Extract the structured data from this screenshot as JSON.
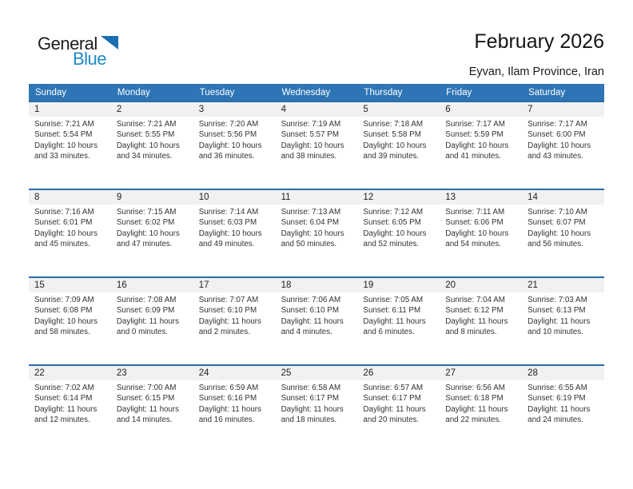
{
  "logo": {
    "general": "General",
    "blue": "Blue"
  },
  "header": {
    "title": "February 2026",
    "subtitle": "Eyvan, Ilam Province, Iran"
  },
  "calendar": {
    "day_headers": [
      "Sunday",
      "Monday",
      "Tuesday",
      "Wednesday",
      "Thursday",
      "Friday",
      "Saturday"
    ],
    "weeks": [
      {
        "days": [
          {
            "date": "1",
            "sunrise": "Sunrise: 7:21 AM",
            "sunset": "Sunset: 5:54 PM",
            "daylight": "Daylight: 10 hours and 33 minutes."
          },
          {
            "date": "2",
            "sunrise": "Sunrise: 7:21 AM",
            "sunset": "Sunset: 5:55 PM",
            "daylight": "Daylight: 10 hours and 34 minutes."
          },
          {
            "date": "3",
            "sunrise": "Sunrise: 7:20 AM",
            "sunset": "Sunset: 5:56 PM",
            "daylight": "Daylight: 10 hours and 36 minutes."
          },
          {
            "date": "4",
            "sunrise": "Sunrise: 7:19 AM",
            "sunset": "Sunset: 5:57 PM",
            "daylight": "Daylight: 10 hours and 38 minutes."
          },
          {
            "date": "5",
            "sunrise": "Sunrise: 7:18 AM",
            "sunset": "Sunset: 5:58 PM",
            "daylight": "Daylight: 10 hours and 39 minutes."
          },
          {
            "date": "6",
            "sunrise": "Sunrise: 7:17 AM",
            "sunset": "Sunset: 5:59 PM",
            "daylight": "Daylight: 10 hours and 41 minutes."
          },
          {
            "date": "7",
            "sunrise": "Sunrise: 7:17 AM",
            "sunset": "Sunset: 6:00 PM",
            "daylight": "Daylight: 10 hours and 43 minutes."
          }
        ]
      },
      {
        "days": [
          {
            "date": "8",
            "sunrise": "Sunrise: 7:16 AM",
            "sunset": "Sunset: 6:01 PM",
            "daylight": "Daylight: 10 hours and 45 minutes."
          },
          {
            "date": "9",
            "sunrise": "Sunrise: 7:15 AM",
            "sunset": "Sunset: 6:02 PM",
            "daylight": "Daylight: 10 hours and 47 minutes."
          },
          {
            "date": "10",
            "sunrise": "Sunrise: 7:14 AM",
            "sunset": "Sunset: 6:03 PM",
            "daylight": "Daylight: 10 hours and 49 minutes."
          },
          {
            "date": "11",
            "sunrise": "Sunrise: 7:13 AM",
            "sunset": "Sunset: 6:04 PM",
            "daylight": "Daylight: 10 hours and 50 minutes."
          },
          {
            "date": "12",
            "sunrise": "Sunrise: 7:12 AM",
            "sunset": "Sunset: 6:05 PM",
            "daylight": "Daylight: 10 hours and 52 minutes."
          },
          {
            "date": "13",
            "sunrise": "Sunrise: 7:11 AM",
            "sunset": "Sunset: 6:06 PM",
            "daylight": "Daylight: 10 hours and 54 minutes."
          },
          {
            "date": "14",
            "sunrise": "Sunrise: 7:10 AM",
            "sunset": "Sunset: 6:07 PM",
            "daylight": "Daylight: 10 hours and 56 minutes."
          }
        ]
      },
      {
        "days": [
          {
            "date": "15",
            "sunrise": "Sunrise: 7:09 AM",
            "sunset": "Sunset: 6:08 PM",
            "daylight": "Daylight: 10 hours and 58 minutes."
          },
          {
            "date": "16",
            "sunrise": "Sunrise: 7:08 AM",
            "sunset": "Sunset: 6:09 PM",
            "daylight": "Daylight: 11 hours and 0 minutes."
          },
          {
            "date": "17",
            "sunrise": "Sunrise: 7:07 AM",
            "sunset": "Sunset: 6:10 PM",
            "daylight": "Daylight: 11 hours and 2 minutes."
          },
          {
            "date": "18",
            "sunrise": "Sunrise: 7:06 AM",
            "sunset": "Sunset: 6:10 PM",
            "daylight": "Daylight: 11 hours and 4 minutes."
          },
          {
            "date": "19",
            "sunrise": "Sunrise: 7:05 AM",
            "sunset": "Sunset: 6:11 PM",
            "daylight": "Daylight: 11 hours and 6 minutes."
          },
          {
            "date": "20",
            "sunrise": "Sunrise: 7:04 AM",
            "sunset": "Sunset: 6:12 PM",
            "daylight": "Daylight: 11 hours and 8 minutes."
          },
          {
            "date": "21",
            "sunrise": "Sunrise: 7:03 AM",
            "sunset": "Sunset: 6:13 PM",
            "daylight": "Daylight: 11 hours and 10 minutes."
          }
        ]
      },
      {
        "days": [
          {
            "date": "22",
            "sunrise": "Sunrise: 7:02 AM",
            "sunset": "Sunset: 6:14 PM",
            "daylight": "Daylight: 11 hours and 12 minutes."
          },
          {
            "date": "23",
            "sunrise": "Sunrise: 7:00 AM",
            "sunset": "Sunset: 6:15 PM",
            "daylight": "Daylight: 11 hours and 14 minutes."
          },
          {
            "date": "24",
            "sunrise": "Sunrise: 6:59 AM",
            "sunset": "Sunset: 6:16 PM",
            "daylight": "Daylight: 11 hours and 16 minutes."
          },
          {
            "date": "25",
            "sunrise": "Sunrise: 6:58 AM",
            "sunset": "Sunset: 6:17 PM",
            "daylight": "Daylight: 11 hours and 18 minutes."
          },
          {
            "date": "26",
            "sunrise": "Sunrise: 6:57 AM",
            "sunset": "Sunset: 6:17 PM",
            "daylight": "Daylight: 11 hours and 20 minutes."
          },
          {
            "date": "27",
            "sunrise": "Sunrise: 6:56 AM",
            "sunset": "Sunset: 6:18 PM",
            "daylight": "Daylight: 11 hours and 22 minutes."
          },
          {
            "date": "28",
            "sunrise": "Sunrise: 6:55 AM",
            "sunset": "Sunset: 6:19 PM",
            "daylight": "Daylight: 11 hours and 24 minutes."
          }
        ]
      }
    ]
  },
  "colors": {
    "header_bg": "#2e75b5",
    "week_border": "#2c6da8",
    "strip_bg": "#f1f1f1",
    "logo_blue": "#2089ca",
    "logo_triangle": "#1b6fb1"
  }
}
